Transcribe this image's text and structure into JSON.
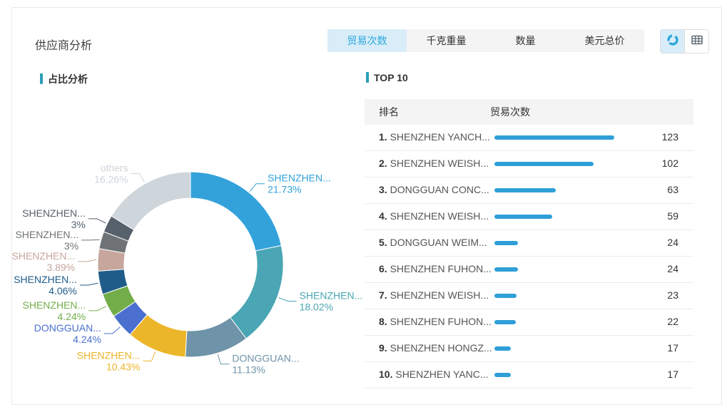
{
  "header": {
    "title": "供应商分析",
    "tabs": [
      {
        "label": "贸易次数",
        "active": true
      },
      {
        "label": "千克重量",
        "active": false
      },
      {
        "label": "数量",
        "active": false
      },
      {
        "label": "美元总价",
        "active": false
      }
    ],
    "view_toggle": {
      "chart_button_icon": "donut-chart-icon",
      "table_button_icon": "table-grid-icon",
      "active": "chart"
    }
  },
  "left_panel": {
    "section_title": "占比分析"
  },
  "right_panel": {
    "section_title": "TOP 10",
    "table": {
      "columns": [
        "排名",
        "贸易次数"
      ]
    }
  },
  "appearance": {
    "accent_teal": "#2b9fba",
    "tab_active_bg": "#d8edf8",
    "tab_active_text": "#2ea7dc",
    "table_header_bg": "#f4f4f4",
    "bar_color": "#2f9fd8",
    "card_border": "#e7e7e7"
  },
  "chart_data": [
    {
      "type": "pie",
      "title": "占比分析",
      "donut": true,
      "start_angle": "top",
      "direction": "clockwise",
      "legend_position": "none",
      "slices": [
        {
          "label": "SHENZHEN...",
          "pct_text": "21.73%",
          "value": 21.73,
          "color": "#33a2db"
        },
        {
          "label": "SHENZHEN...",
          "pct_text": "18.02%",
          "value": 18.02,
          "color": "#4aa6b4"
        },
        {
          "label": "DONGGUAN...",
          "pct_text": "11.13%",
          "value": 11.13,
          "color": "#6f93a8"
        },
        {
          "label": "SHENZHEN...",
          "pct_text": "10.43%",
          "value": 10.43,
          "color": "#ecb62a"
        },
        {
          "label": "DONGGUAN...",
          "pct_text": "4.24%",
          "value": 4.24,
          "color": "#4a6fce"
        },
        {
          "label": "SHENZHEN...",
          "pct_text": "4.24%",
          "value": 4.24,
          "color": "#73ad4a"
        },
        {
          "label": "SHENZHEN...",
          "pct_text": "4.06%",
          "value": 4.06,
          "color": "#1f5c8a"
        },
        {
          "label": "SHENZHEN...",
          "pct_text": "3.89%",
          "value": 3.89,
          "color": "#c6a69d"
        },
        {
          "label": "SHENZHEN...",
          "pct_text": "3%",
          "value": 3.0,
          "color": "#6f7376"
        },
        {
          "label": "SHENZHEN...",
          "pct_text": "3%",
          "value": 3.0,
          "color": "#56616c"
        },
        {
          "label": "others",
          "pct_text": "16.26%",
          "value": 16.26,
          "color": "#ced5db"
        }
      ]
    },
    {
      "type": "bar",
      "title": "TOP 10",
      "orientation": "horizontal",
      "value_label": "贸易次数",
      "max_value": 123,
      "bar_color": "#2f9fd8",
      "rows": [
        {
          "rank": "1.",
          "name": "SHENZHEN YANCH...",
          "value": 123
        },
        {
          "rank": "2.",
          "name": "SHENZHEN WEISH...",
          "value": 102
        },
        {
          "rank": "3.",
          "name": "DONGGUAN CONC...",
          "value": 63
        },
        {
          "rank": "4.",
          "name": "SHENZHEN WEISH...",
          "value": 59
        },
        {
          "rank": "5.",
          "name": "DONGGUAN WEIM...",
          "value": 24
        },
        {
          "rank": "6.",
          "name": "SHENZHEN FUHON...",
          "value": 24
        },
        {
          "rank": "7.",
          "name": "SHENZHEN WEISH...",
          "value": 23
        },
        {
          "rank": "8.",
          "name": "SHENZHEN FUHON...",
          "value": 22
        },
        {
          "rank": "9.",
          "name": "SHENZHEN HONGZ...",
          "value": 17
        },
        {
          "rank": "10.",
          "name": "SHENZHEN YANC...",
          "value": 17
        }
      ]
    }
  ]
}
